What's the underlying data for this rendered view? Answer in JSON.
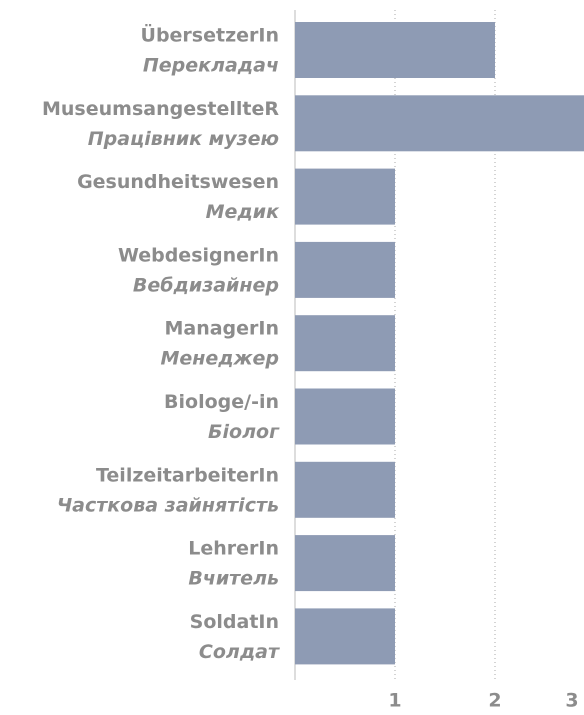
{
  "chart_data": {
    "type": "barh",
    "categories": [
      "ÜbersetzerIn",
      "MuseumsangestellteR",
      "Gesundheitswesen",
      "WebdesignerIn",
      "ManagerIn",
      "Biologe/-in",
      "TeilzeitarbeiterIn",
      "LehrerIn",
      "SoldatIn"
    ],
    "categories_uk": [
      "Перекладач",
      "Працівник музею",
      "Медик",
      "Вебдизайнер",
      "Менеджер",
      "Біолог",
      "Часткова зайнятість",
      "Вчитель",
      "Солдат"
    ],
    "values": [
      2,
      3,
      1,
      1,
      1,
      1,
      1,
      1,
      1
    ],
    "color": "#8e9bb4",
    "xlim": [
      0,
      3
    ],
    "xticks": [
      1,
      2,
      3
    ],
    "grid": true
  }
}
